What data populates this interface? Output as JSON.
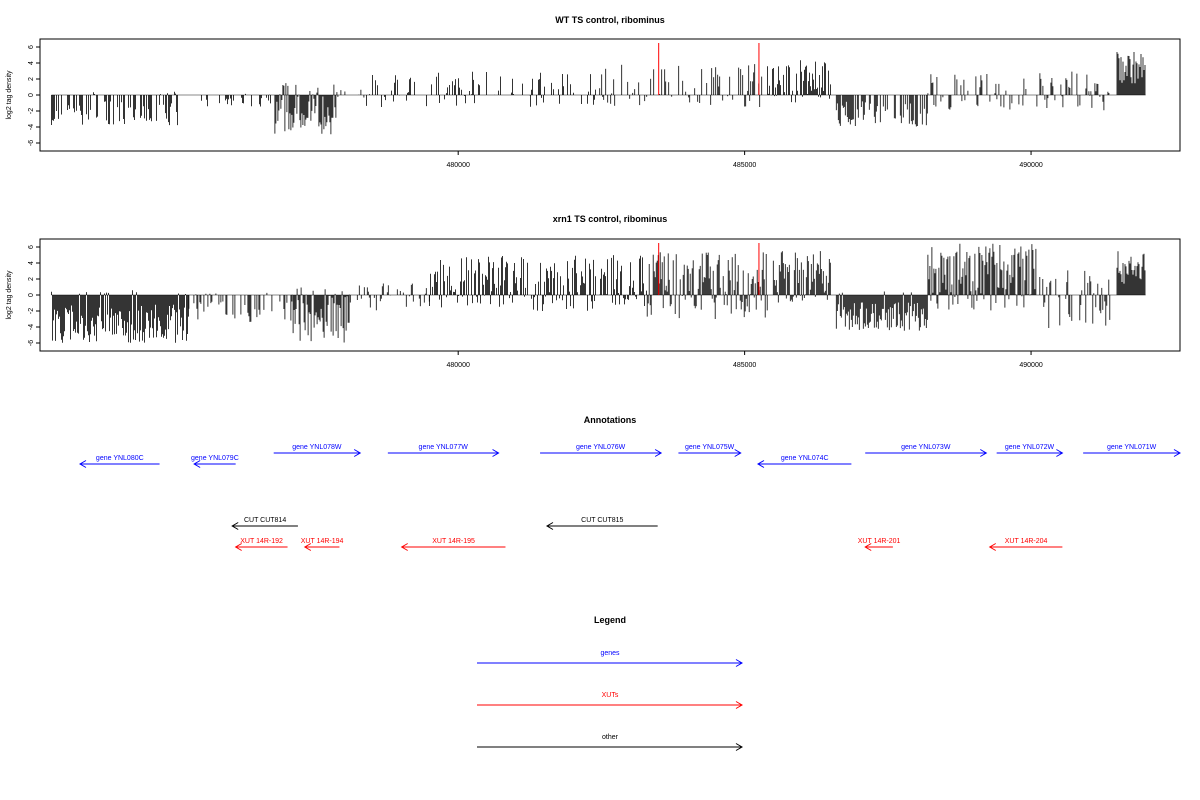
{
  "panels": [
    {
      "title": "WT TS control, ribominus",
      "ylabel": "log2 tag density"
    },
    {
      "title": "xrn1 TS control, ribominus",
      "ylabel": "log2 tag density"
    }
  ],
  "annotations_title": "Annotations",
  "legend_title": "Legend",
  "colors": {
    "genes": "#0000ff",
    "XUTs": "#ff0000",
    "other": "#000000",
    "bars": "#000000",
    "marker": "#ff0000"
  },
  "chart_data": [
    {
      "type": "bar",
      "title": "WT TS control, ribominus",
      "xlabel": "",
      "ylabel": "log2 tag density",
      "xlim": [
        472700,
        492600
      ],
      "ylim": [
        -7,
        7
      ],
      "yticks": [
        -6,
        -4,
        -2,
        0,
        2,
        4,
        6
      ],
      "xticks": [
        480000,
        485000,
        490000
      ],
      "red_markers": [
        483500,
        485250
      ],
      "segments": [
        {
          "start": 472900,
          "end": 475100,
          "min": -4.0,
          "max": 0.5,
          "density": 0.55
        },
        {
          "start": 475100,
          "end": 476800,
          "min": -1.5,
          "max": 0.3,
          "density": 0.25
        },
        {
          "start": 476800,
          "end": 477900,
          "min": -5.0,
          "max": 1.5,
          "density": 0.9
        },
        {
          "start": 477900,
          "end": 478400,
          "min": -1.0,
          "max": 1.0,
          "density": 0.2
        },
        {
          "start": 478400,
          "end": 482400,
          "min": -1.5,
          "max": 3.0,
          "density": 0.35
        },
        {
          "start": 482400,
          "end": 485300,
          "min": -1.5,
          "max": 4.0,
          "density": 0.4
        },
        {
          "start": 485400,
          "end": 486500,
          "min": -1.0,
          "max": 4.5,
          "density": 0.9
        },
        {
          "start": 486600,
          "end": 488200,
          "min": -4.0,
          "max": 0.5,
          "density": 0.6
        },
        {
          "start": 488200,
          "end": 491400,
          "min": -2.0,
          "max": 3.0,
          "density": 0.4
        },
        {
          "start": 491500,
          "end": 492000,
          "min": 0.0,
          "max": 5.5,
          "density": 1.0
        }
      ]
    },
    {
      "type": "bar",
      "title": "xrn1 TS control, ribominus",
      "xlabel": "",
      "ylabel": "log2 tag density",
      "xlim": [
        472700,
        492600
      ],
      "ylim": [
        -7,
        7
      ],
      "yticks": [
        -6,
        -4,
        -2,
        0,
        2,
        4,
        6
      ],
      "xticks": [
        480000,
        485000,
        490000
      ],
      "red_markers": [
        483500,
        485250
      ],
      "segments": [
        {
          "start": 472900,
          "end": 475300,
          "min": -6.0,
          "max": 0.5,
          "density": 1.0
        },
        {
          "start": 475300,
          "end": 477100,
          "min": -3.5,
          "max": 0.5,
          "density": 0.4
        },
        {
          "start": 477100,
          "end": 478100,
          "min": -6.0,
          "max": 1.0,
          "density": 1.0
        },
        {
          "start": 478100,
          "end": 479500,
          "min": -2.0,
          "max": 1.5,
          "density": 0.4
        },
        {
          "start": 479500,
          "end": 483300,
          "min": -2.0,
          "max": 5.0,
          "density": 0.8
        },
        {
          "start": 483300,
          "end": 485400,
          "min": -3.0,
          "max": 5.5,
          "density": 0.9
        },
        {
          "start": 485500,
          "end": 486500,
          "min": -1.0,
          "max": 5.5,
          "density": 1.0
        },
        {
          "start": 486600,
          "end": 488200,
          "min": -4.5,
          "max": 0.5,
          "density": 1.0
        },
        {
          "start": 488200,
          "end": 490100,
          "min": -2.0,
          "max": 6.5,
          "density": 1.0
        },
        {
          "start": 490100,
          "end": 491400,
          "min": -4.5,
          "max": 3.5,
          "density": 0.55
        },
        {
          "start": 491500,
          "end": 492000,
          "min": 0.0,
          "max": 5.5,
          "density": 1.0
        }
      ]
    }
  ],
  "annotations": [
    {
      "label": "gene YNL080C",
      "kind": "genes",
      "start": 472900,
      "end": 474050,
      "strand": "-",
      "row": 1
    },
    {
      "label": "gene YNL079C",
      "kind": "genes",
      "start": 474550,
      "end": 475150,
      "strand": "-",
      "row": 1
    },
    {
      "label": "gene YNL078W",
      "kind": "genes",
      "start": 475700,
      "end": 476950,
      "strand": "+",
      "row": 0
    },
    {
      "label": "gene YNL077W",
      "kind": "genes",
      "start": 477350,
      "end": 478950,
      "strand": "+",
      "row": 0
    },
    {
      "label": "gene YNL076W",
      "kind": "genes",
      "start": 479550,
      "end": 481300,
      "strand": "+",
      "row": 0
    },
    {
      "label": "gene YNL075W",
      "kind": "genes",
      "start": 481550,
      "end": 482450,
      "strand": "+",
      "row": 0
    },
    {
      "label": "gene YNL074C",
      "kind": "genes",
      "start": 482700,
      "end": 484050,
      "strand": "-",
      "row": 1
    },
    {
      "label": "gene YNL073W",
      "kind": "genes",
      "start": 484250,
      "end": 486000,
      "strand": "+",
      "row": 0
    },
    {
      "label": "gene YNL072W",
      "kind": "genes",
      "start": 486150,
      "end": 487100,
      "strand": "+",
      "row": 0
    },
    {
      "label": "gene YNL071W",
      "kind": "genes",
      "start": 487400,
      "end": 488800,
      "strand": "+",
      "row": 0
    },
    {
      "label": "CUT CUT814",
      "kind": "other",
      "start": 475100,
      "end": 476050,
      "strand": "-",
      "row": 2
    },
    {
      "label": "CUT CUT815",
      "kind": "other",
      "start": 479650,
      "end": 481250,
      "strand": "-",
      "row": 2
    },
    {
      "label": "XUT 14R-192",
      "kind": "XUTs",
      "start": 475150,
      "end": 475900,
      "strand": "-",
      "row": 3
    },
    {
      "label": "XUT 14R-194",
      "kind": "XUTs",
      "start": 476150,
      "end": 476650,
      "strand": "-",
      "row": 3
    },
    {
      "label": "XUT 14R-195",
      "kind": "XUTs",
      "start": 477550,
      "end": 479050,
      "strand": "-",
      "row": 3
    },
    {
      "label": "XUT 14R-201",
      "kind": "XUTs",
      "start": 484250,
      "end": 484650,
      "strand": "-",
      "row": 3
    },
    {
      "label": "XUT 14R-204",
      "kind": "XUTs",
      "start": 486050,
      "end": 487100,
      "strand": "-",
      "row": 3
    }
  ],
  "legend": [
    {
      "label": "genes",
      "kind": "genes"
    },
    {
      "label": "XUTs",
      "kind": "XUTs"
    },
    {
      "label": "other",
      "kind": "other"
    }
  ]
}
